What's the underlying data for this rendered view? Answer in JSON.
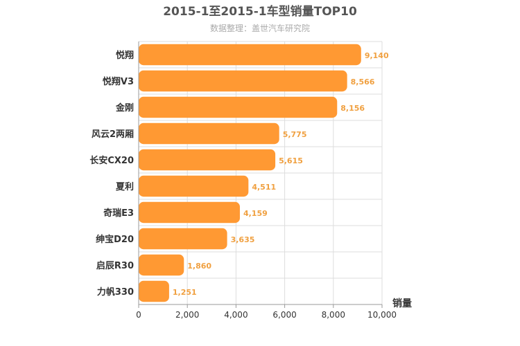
{
  "chart_data": {
    "type": "bar",
    "orientation": "horizontal",
    "title": "2015-1至2015-1车型销量TOP10",
    "subtitle": "数据整理：盖世汽车研究院",
    "xlabel": "销量",
    "ylabel": "",
    "categories": [
      "悦翔",
      "悦翔V3",
      "金刚",
      "风云2两厢",
      "长安CX20",
      "夏利",
      "奇瑞E3",
      "绅宝D20",
      "启辰R30",
      "力帆330"
    ],
    "values": [
      9140,
      8566,
      8156,
      5775,
      5615,
      4511,
      4159,
      3635,
      1860,
      1251
    ],
    "value_labels": [
      "9,140",
      "8,566",
      "8,156",
      "5,775",
      "5,615",
      "4,511",
      "4,159",
      "3,635",
      "1,860",
      "1,251"
    ],
    "xlim": [
      0,
      10000
    ],
    "xticks": [
      0,
      2000,
      4000,
      6000,
      8000,
      10000
    ],
    "xtick_labels": [
      "0",
      "2,000",
      "4,000",
      "6,000",
      "8,000",
      "10,000"
    ],
    "grid": true,
    "legend": "none",
    "colors": {
      "bar": "#ff9933",
      "data_label": "#f0a040",
      "grid": "#dddddd",
      "axis": "#999999"
    }
  }
}
